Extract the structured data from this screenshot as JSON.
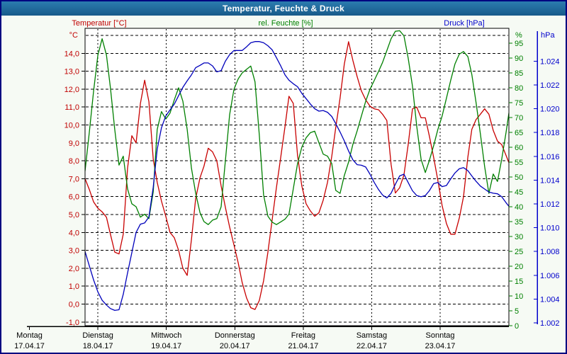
{
  "title_bar": {
    "title": "Temperatur, Feuchte & Druck"
  },
  "chart_data": {
    "type": "line",
    "title": "Temperatur, Feuchte & Druck",
    "grid": "dashed",
    "legend_position": "top",
    "x_axis": {
      "unit": "hours since Montag 17.04.17 00:00",
      "visible_range_hours": [
        19.5,
        168.1
      ],
      "hours_per_day": 24,
      "day_labels": [
        {
          "t": 0,
          "name": "Montag",
          "date": "17.04.17"
        },
        {
          "t": 24,
          "name": "Dienstag",
          "date": "18.04.17"
        },
        {
          "t": 48,
          "name": "Mittwoch",
          "date": "19.04.17"
        },
        {
          "t": 72,
          "name": "Donnerstag",
          "date": "20.04.17"
        },
        {
          "t": 96,
          "name": "Freitag",
          "date": "21.04.17"
        },
        {
          "t": 120,
          "name": "Samstag",
          "date": "22.04.17"
        },
        {
          "t": 144,
          "name": "Sonntag",
          "date": "23.04.17"
        }
      ]
    },
    "axes": {
      "temperature": {
        "title": "Temperatur [°C]",
        "unit_label": "°C",
        "color": "#c00000",
        "min": -1,
        "max": 15,
        "tick_step": 1,
        "tick_values": [
          -1,
          0,
          1,
          2,
          3,
          4,
          5,
          6,
          7,
          8,
          9,
          10,
          11,
          12,
          13,
          14
        ],
        "tick_labels": [
          "-1,0",
          "0,0",
          "1,0",
          "2,0",
          "3,0",
          "4,0",
          "5,0",
          "6,0",
          "7,0",
          "8,0",
          "9,0",
          "10,0",
          "11,0",
          "12,0",
          "13,0",
          "14,0"
        ]
      },
      "humidity": {
        "title": "rel. Feuchte [%]",
        "unit_label": "%",
        "color": "#008000",
        "min": 0,
        "max": 100,
        "tick_step": 5,
        "tick_values": [
          0,
          5,
          10,
          15,
          20,
          25,
          30,
          35,
          40,
          45,
          50,
          55,
          60,
          65,
          70,
          75,
          80,
          85,
          90,
          95
        ],
        "tick_labels": [
          "0",
          "5",
          "10",
          "15",
          "20",
          "25",
          "30",
          "35",
          "40",
          "45",
          "50",
          "55",
          "60",
          "65",
          "70",
          "75",
          "80",
          "85",
          "90",
          "95"
        ]
      },
      "pressure": {
        "title": "Druck [hPa]",
        "unit_label": "hPa",
        "color": "#0000cc",
        "min": 1001.7,
        "max": 1026.7,
        "tick_step": 2,
        "tick_values": [
          1002,
          1004,
          1006,
          1008,
          1010,
          1012,
          1014,
          1016,
          1018,
          1020,
          1022,
          1024
        ],
        "tick_labels": [
          "1.002",
          "1.004",
          "1.006",
          "1.008",
          "1.010",
          "1.012",
          "1.014",
          "1.016",
          "1.018",
          "1.020",
          "1.022",
          "1.024"
        ]
      }
    },
    "t_hours": [
      19.5,
      21,
      22.5,
      24,
      25.5,
      27,
      28.4,
      29.9,
      31.4,
      32.9,
      34.4,
      35.9,
      37.4,
      38.9,
      40.4,
      41.9,
      43.4,
      44.8,
      46.3,
      47.8,
      49.3,
      50.8,
      52.3,
      53.8,
      55.3,
      56.8,
      58.3,
      59.8,
      61.2,
      62.7,
      64.2,
      65.7,
      67.2,
      68.7,
      70.2,
      71.7,
      73.2,
      74.6,
      76.1,
      77.6,
      79.1,
      80.6,
      82.1,
      83.6,
      85.1,
      86.6,
      88.1,
      89.6,
      91,
      92.5,
      94,
      95.5,
      97,
      98.5,
      100,
      101.5,
      103,
      104.5,
      106,
      107.4,
      108.9,
      110.4,
      111.9,
      113.4,
      114.9,
      116.4,
      117.9,
      119.4,
      120.9,
      122.4,
      123.8,
      125.3,
      126.8,
      128.3,
      129.8,
      131.3,
      132.8,
      134.3,
      135.8,
      137.3,
      138.8,
      140.2,
      141.7,
      143.2,
      144.7,
      146.2,
      147.7,
      149.2,
      150.7,
      152.2,
      153.7,
      155.1,
      156.6,
      158.1,
      159.6,
      161.1,
      162.6,
      164.1,
      165.6,
      167.1,
      168.1
    ],
    "series": [
      {
        "name": "Temperatur [°C]",
        "axis": "temperature",
        "color": "#c80000",
        "values": [
          7.0,
          6.4,
          5.7,
          5.35,
          5.15,
          4.85,
          3.9,
          2.9,
          2.8,
          3.9,
          7.6,
          9.4,
          9.0,
          11.2,
          12.5,
          11.3,
          8.1,
          6.8,
          5.75,
          4.9,
          4.0,
          3.7,
          3.0,
          2.0,
          1.6,
          3.6,
          5.9,
          7.05,
          7.7,
          8.7,
          8.5,
          8.0,
          6.6,
          5.4,
          4.3,
          3.3,
          2.3,
          1.2,
          0.35,
          -0.2,
          -0.3,
          0.2,
          1.3,
          2.9,
          4.7,
          6.5,
          8.2,
          9.9,
          11.6,
          11.2,
          8.3,
          6.6,
          5.6,
          5.2,
          4.9,
          5.1,
          5.8,
          6.8,
          8.25,
          9.85,
          11.5,
          13.4,
          14.65,
          13.6,
          12.7,
          11.9,
          11.4,
          11.05,
          10.9,
          10.85,
          10.6,
          10.25,
          7.8,
          6.2,
          6.5,
          7.2,
          8.9,
          10.9,
          11.0,
          10.4,
          10.4,
          9.4,
          8.2,
          6.9,
          5.5,
          4.5,
          3.9,
          3.9,
          4.8,
          6.0,
          8.2,
          9.75,
          10.3,
          10.6,
          10.9,
          10.6,
          9.7,
          9.1,
          8.9,
          8.3,
          7.9
        ]
      },
      {
        "name": "rel. Feuchte [%]",
        "axis": "humidity",
        "color": "#008000",
        "values": [
          52,
          65,
          79,
          91,
          96.5,
          91,
          80,
          66,
          54,
          57,
          46,
          41,
          40,
          36.5,
          37.5,
          36,
          45,
          66,
          72,
          69.5,
          71.5,
          76,
          80,
          75.5,
          66,
          53,
          44.5,
          38,
          35,
          34,
          35.5,
          36,
          40,
          55.5,
          71,
          79.5,
          83,
          85,
          86.2,
          87.3,
          82,
          64,
          44,
          36.8,
          34.8,
          34,
          34.9,
          35.8,
          37.5,
          46,
          54.5,
          60,
          63.2,
          64.9,
          65.4,
          61.5,
          57.7,
          57,
          54.5,
          45.5,
          44.5,
          50.5,
          55,
          61,
          65.5,
          70.5,
          75.5,
          79.5,
          82.5,
          85.5,
          88.5,
          92.5,
          96.5,
          99,
          99.2,
          97.5,
          90,
          80.5,
          67,
          56,
          51.5,
          55.5,
          60.5,
          66,
          70.5,
          76.5,
          82.5,
          88,
          91.3,
          92.2,
          90.5,
          84.5,
          75,
          64.5,
          53.5,
          44.5,
          51,
          48.5,
          56,
          65,
          71.5
        ]
      },
      {
        "name": "Druck [hPa]",
        "axis": "pressure",
        "color": "#0000bb",
        "values": [
          1008.0,
          1006.8,
          1005.6,
          1004.6,
          1003.9,
          1003.5,
          1003.2,
          1003.05,
          1003.1,
          1004.4,
          1006.2,
          1007.9,
          1009.6,
          1010.3,
          1010.4,
          1010.9,
          1013.4,
          1016.6,
          1018.4,
          1019.4,
          1019.9,
          1020.4,
          1021.1,
          1021.8,
          1022.35,
          1022.85,
          1023.45,
          1023.65,
          1023.85,
          1023.85,
          1023.6,
          1023.1,
          1023.2,
          1024.0,
          1024.55,
          1024.9,
          1024.9,
          1024.9,
          1025.2,
          1025.55,
          1025.65,
          1025.65,
          1025.55,
          1025.3,
          1024.95,
          1024.3,
          1023.6,
          1022.85,
          1022.4,
          1022.1,
          1021.85,
          1021.3,
          1020.85,
          1020.4,
          1020.0,
          1019.8,
          1019.85,
          1019.7,
          1019.35,
          1018.75,
          1018.05,
          1017.3,
          1016.45,
          1015.7,
          1015.3,
          1015.25,
          1015.1,
          1014.5,
          1013.8,
          1013.2,
          1012.75,
          1012.5,
          1012.9,
          1013.65,
          1014.35,
          1014.5,
          1013.8,
          1013.1,
          1012.7,
          1012.6,
          1012.7,
          1013.1,
          1013.7,
          1013.8,
          1013.45,
          1013.55,
          1014.1,
          1014.6,
          1014.95,
          1015.05,
          1014.8,
          1014.35,
          1013.9,
          1013.5,
          1013.25,
          1013.0,
          1012.9,
          1012.85,
          1012.6,
          1012.1,
          1011.8
        ]
      }
    ]
  }
}
